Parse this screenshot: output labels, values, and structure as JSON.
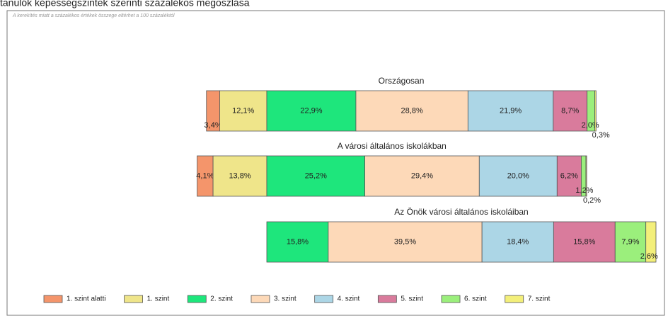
{
  "chart_data": {
    "type": "diverging_stacked_bar",
    "title": "tanulók képességszintek szerinti százalékos megoszlása",
    "subtitle": "A kerekítés miatt a százalékos értékek összege eltérhet a 100 százaléktól",
    "categories": [
      "Országosan",
      "A városi általános iskolákban",
      "Az Önök városi általános iskoláiban"
    ],
    "series": [
      {
        "name": "1. szint alatti",
        "color": "#f4956b",
        "values": [
          3.4,
          4.1,
          null
        ],
        "value_labels": [
          "3,4%",
          "4,1%",
          null
        ]
      },
      {
        "name": "1. szint",
        "color": "#efe58a",
        "values": [
          12.1,
          13.8,
          null
        ],
        "value_labels": [
          "12,1%",
          "13,8%",
          null
        ]
      },
      {
        "name": "2. szint",
        "color": "#1ee67c",
        "values": [
          22.9,
          25.2,
          15.8
        ],
        "value_labels": [
          "22,9%",
          "25,2%",
          "15,8%"
        ]
      },
      {
        "name": "3. szint",
        "color": "#fdd9b8",
        "values": [
          28.8,
          29.4,
          39.5
        ],
        "value_labels": [
          "28,8%",
          "29,4%",
          "39,5%"
        ]
      },
      {
        "name": "4. szint",
        "color": "#acd6e6",
        "values": [
          21.9,
          20.0,
          18.4
        ],
        "value_labels": [
          "21,9%",
          "20,0%",
          "18,4%"
        ]
      },
      {
        "name": "5. szint",
        "color": "#d97b9c",
        "values": [
          8.7,
          6.2,
          15.8
        ],
        "value_labels": [
          "8,7%",
          "6,2%",
          "15,8%"
        ]
      },
      {
        "name": "6. szint",
        "color": "#9bef7c",
        "values": [
          2.0,
          1.2,
          7.9
        ],
        "value_labels": [
          "2,0%",
          "1,2%",
          "7,9%"
        ]
      },
      {
        "name": "7. szint",
        "color": "#f3ef7a",
        "values": [
          0.3,
          0.2,
          2.6
        ],
        "value_labels": [
          "0,3%",
          "0,2%",
          "2,6%"
        ]
      }
    ],
    "center_after_series": 2
  }
}
